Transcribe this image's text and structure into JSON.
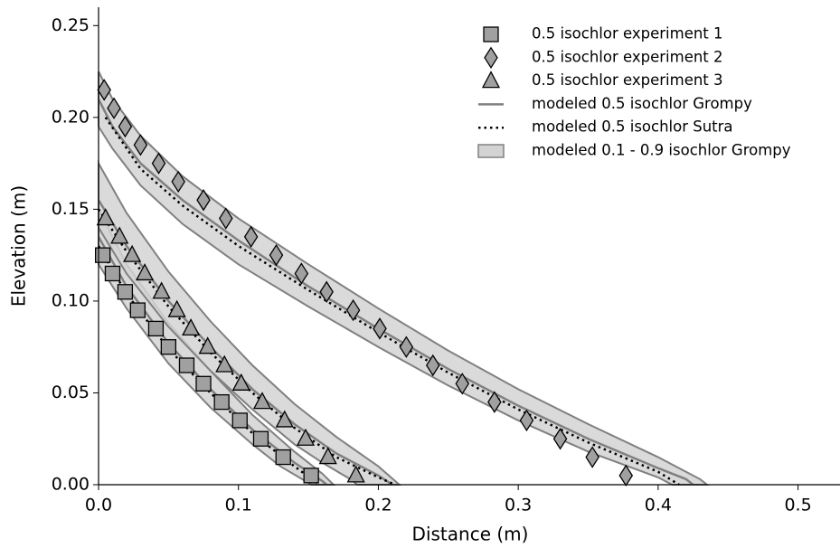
{
  "chart_data": {
    "type": "scatter",
    "x_label": "Distance (m)",
    "y_label": "Elevation (m)",
    "xlim": [
      0,
      0.53
    ],
    "ylim": [
      0,
      0.26
    ],
    "xticks": [
      {
        "value": 0,
        "label": "0.0"
      },
      0.1,
      0.2,
      0.3,
      0.4,
      0.5
    ],
    "yticks": [
      {
        "value": 0,
        "label": "0.00"
      },
      {
        "value": 0.05,
        "label": "0.05"
      },
      {
        "value": 0.1,
        "label": "0.10"
      },
      {
        "value": 0.15,
        "label": "0.15"
      },
      {
        "value": 0.2,
        "label": "0.20"
      },
      {
        "value": 0.25,
        "label": "0.25"
      }
    ],
    "legend": "upper right",
    "series": [
      {
        "name": "0.5 isochlor experiment 1",
        "marker": "square",
        "color": "#a0a0a0",
        "x": [
          0.003,
          0.01,
          0.019,
          0.028,
          0.041,
          0.05,
          0.063,
          0.075,
          0.088,
          0.101,
          0.116,
          0.132,
          0.152
        ],
        "y": [
          0.125,
          0.115,
          0.105,
          0.095,
          0.085,
          0.075,
          0.065,
          0.055,
          0.045,
          0.035,
          0.025,
          0.015,
          0.005
        ]
      },
      {
        "name": "0.5 isochlor experiment 2",
        "marker": "diamond",
        "color": "#a0a0a0",
        "x": [
          0.004,
          0.011,
          0.019,
          0.03,
          0.043,
          0.057,
          0.075,
          0.091,
          0.109,
          0.127,
          0.145,
          0.163,
          0.182,
          0.201,
          0.22,
          0.239,
          0.26,
          0.283,
          0.306,
          0.33,
          0.353,
          0.377
        ],
        "y": [
          0.215,
          0.205,
          0.195,
          0.185,
          0.175,
          0.165,
          0.155,
          0.145,
          0.135,
          0.125,
          0.115,
          0.105,
          0.095,
          0.085,
          0.075,
          0.065,
          0.055,
          0.045,
          0.035,
          0.025,
          0.015,
          0.005
        ]
      },
      {
        "name": "0.5 isochlor experiment 3",
        "marker": "triangle",
        "color": "#a0a0a0",
        "x": [
          0.005,
          0.015,
          0.024,
          0.033,
          0.045,
          0.056,
          0.066,
          0.078,
          0.09,
          0.102,
          0.117,
          0.133,
          0.148,
          0.164,
          0.184
        ],
        "y": [
          0.145,
          0.135,
          0.125,
          0.115,
          0.105,
          0.095,
          0.085,
          0.075,
          0.065,
          0.055,
          0.045,
          0.035,
          0.025,
          0.015,
          0.005
        ]
      },
      {
        "name": "modeled 0.5 isochlor Grompy",
        "style": "solid",
        "color": "#808080",
        "curves": [
          {
            "x": [
              0,
              0.02,
              0.05,
              0.08,
              0.11,
              0.14,
              0.16,
              0.163
            ],
            "y": [
              0.135,
              0.108,
              0.077,
              0.052,
              0.03,
              0.012,
              0.002,
              0
            ]
          },
          {
            "x": [
              0,
              0.02,
              0.05,
              0.08,
              0.11,
              0.14,
              0.17,
              0.2,
              0.21
            ],
            "y": [
              0.155,
              0.13,
              0.1,
              0.075,
              0.052,
              0.033,
              0.017,
              0.005,
              0
            ]
          },
          {
            "x": [
              0,
              0.01,
              0.03,
              0.06,
              0.1,
              0.15,
              0.2,
              0.25,
              0.3,
              0.35,
              0.4,
              0.42,
              0.425
            ],
            "y": [
              0.21,
              0.195,
              0.175,
              0.155,
              0.133,
              0.108,
              0.085,
              0.063,
              0.043,
              0.025,
              0.009,
              0.003,
              0
            ]
          }
        ]
      },
      {
        "name": "modeled 0.5 isochlor Sutra",
        "style": "dotted",
        "color": "#000000",
        "curves": [
          {
            "x": [
              0,
              0.02,
              0.05,
              0.08,
              0.11,
              0.14,
              0.158
            ],
            "y": [
              0.13,
              0.104,
              0.074,
              0.05,
              0.028,
              0.01,
              0
            ]
          },
          {
            "x": [
              0,
              0.02,
              0.05,
              0.08,
              0.11,
              0.14,
              0.17,
              0.2,
              0.212
            ],
            "y": [
              0.15,
              0.127,
              0.097,
              0.072,
              0.05,
              0.031,
              0.015,
              0.004,
              0
            ]
          },
          {
            "x": [
              0.005,
              0.03,
              0.06,
              0.1,
              0.15,
              0.2,
              0.25,
              0.3,
              0.35,
              0.4,
              0.415
            ],
            "y": [
              0.2,
              0.172,
              0.152,
              0.13,
              0.106,
              0.083,
              0.061,
              0.041,
              0.023,
              0.007,
              0
            ]
          }
        ]
      },
      {
        "name": "modeled 0.1 - 0.9 isochlor Grompy",
        "style": "band",
        "color": "#d3d3d3",
        "curves": [
          {
            "x_upper": [
              0,
              0.02,
              0.05,
              0.08,
              0.11,
              0.14,
              0.16,
              0.168
            ],
            "y_upper": [
              0.15,
              0.12,
              0.088,
              0.062,
              0.038,
              0.018,
              0.006,
              0
            ],
            "x_lower": [
              0,
              0.02,
              0.05,
              0.08,
              0.11,
              0.13,
              0.15,
              0.152
            ],
            "y_lower": [
              0.12,
              0.096,
              0.066,
              0.042,
              0.022,
              0.01,
              0.001,
              0
            ]
          },
          {
            "x_upper": [
              0,
              0.02,
              0.05,
              0.08,
              0.11,
              0.14,
              0.17,
              0.2,
              0.215
            ],
            "y_upper": [
              0.175,
              0.148,
              0.116,
              0.089,
              0.065,
              0.044,
              0.026,
              0.01,
              0
            ],
            "x_lower": [
              0,
              0.02,
              0.05,
              0.08,
              0.11,
              0.14,
              0.16,
              0.18,
              0.185
            ],
            "y_lower": [
              0.14,
              0.115,
              0.086,
              0.062,
              0.041,
              0.022,
              0.012,
              0.003,
              0
            ]
          },
          {
            "x_upper": [
              0,
              0.01,
              0.03,
              0.06,
              0.1,
              0.15,
              0.2,
              0.25,
              0.3,
              0.35,
              0.4,
              0.43,
              0.435
            ],
            "y_upper": [
              0.225,
              0.21,
              0.19,
              0.168,
              0.145,
              0.12,
              0.096,
              0.073,
              0.052,
              0.033,
              0.015,
              0.003,
              0
            ],
            "x_lower": [
              0,
              0.01,
              0.03,
              0.06,
              0.1,
              0.15,
              0.2,
              0.25,
              0.3,
              0.35,
              0.4,
              0.41
            ],
            "y_lower": [
              0.195,
              0.183,
              0.163,
              0.142,
              0.12,
              0.097,
              0.075,
              0.054,
              0.035,
              0.018,
              0.004,
              0
            ]
          }
        ]
      }
    ]
  }
}
